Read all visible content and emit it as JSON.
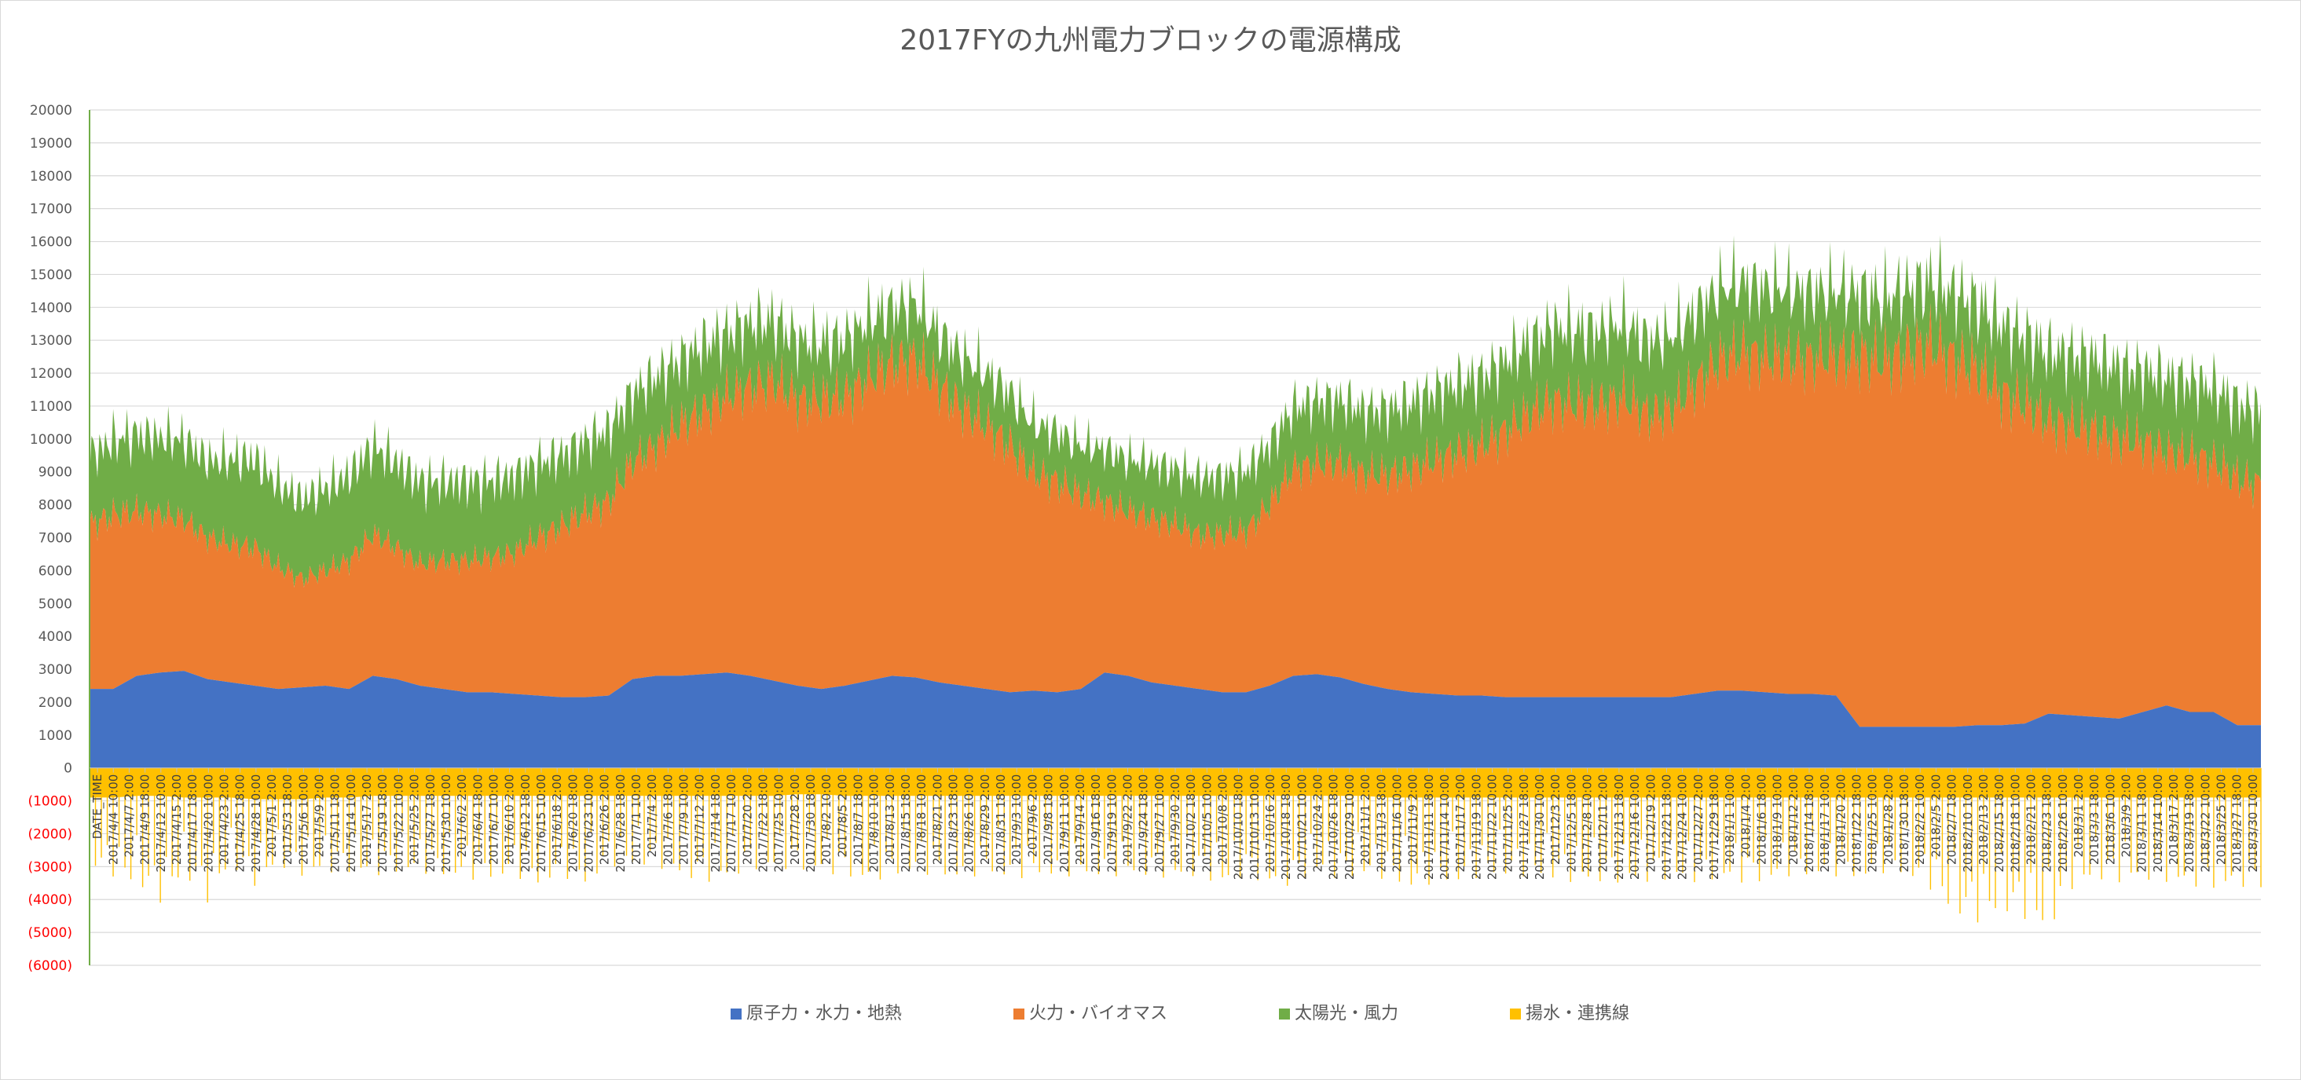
{
  "chart_data": {
    "type": "area",
    "title": "2017FYの九州電力ブロックの電源構成",
    "xlabel": "DATE_TIME",
    "ylabel": "",
    "ylim": [
      -6000,
      20000
    ],
    "y_ticks": [
      -6000,
      -5000,
      -4000,
      -3000,
      -2000,
      -1000,
      0,
      1000,
      2000,
      3000,
      4000,
      5000,
      6000,
      7000,
      8000,
      9000,
      10000,
      11000,
      12000,
      13000,
      14000,
      15000,
      16000,
      17000,
      18000,
      19000,
      20000
    ],
    "y_tick_labels": [
      "(6000)",
      "(5000)",
      "(4000)",
      "(3000)",
      "(2000)",
      "(1000)",
      "0",
      "1000",
      "2000",
      "3000",
      "4000",
      "5000",
      "6000",
      "7000",
      "8000",
      "9000",
      "10000",
      "11000",
      "12000",
      "13000",
      "14000",
      "15000",
      "16000",
      "17000",
      "18000",
      "19000",
      "20000"
    ],
    "negative_tick_color": "#ff0000",
    "x_tick_labels": [
      "DATE_TIME",
      "2017/4/4 10:00",
      "2017/4/7 2:00",
      "2017/4/9 18:00",
      "2017/4/12 10:00",
      "2017/4/15 2:00",
      "2017/4/17 18:00",
      "2017/4/20 10:00",
      "2017/4/23 2:00",
      "2017/4/25 18:00",
      "2017/4/28 10:00",
      "2017/5/1 2:00",
      "2017/5/3 18:00",
      "2017/5/6 10:00",
      "2017/5/9 2:00",
      "2017/5/11 18:00",
      "2017/5/14 10:00",
      "2017/5/17 2:00",
      "2017/5/19 18:00",
      "2017/5/22 10:00",
      "2017/5/25 2:00",
      "2017/5/27 18:00",
      "2017/5/30 10:00",
      "2017/6/2 2:00",
      "2017/6/4 18:00",
      "2017/6/7 10:00",
      "2017/6/10 2:00",
      "2017/6/12 18:00",
      "2017/6/15 10:00",
      "2017/6/18 2:00",
      "2017/6/20 18:00",
      "2017/6/23 10:00",
      "2017/6/26 2:00",
      "2017/6/28 18:00",
      "2017/7/1 10:00",
      "2017/7/4 2:00",
      "2017/7/6 18:00",
      "2017/7/9 10:00",
      "2017/7/12 2:00",
      "2017/7/14 18:00",
      "2017/7/17 10:00",
      "2017/7/20 2:00",
      "2017/7/22 18:00",
      "2017/7/25 10:00",
      "2017/7/28 2:00",
      "2017/7/30 18:00",
      "2017/8/2 10:00",
      "2017/8/5 2:00",
      "2017/8/7 18:00",
      "2017/8/10 10:00",
      "2017/8/13 2:00",
      "2017/8/15 18:00",
      "2017/8/18 10:00",
      "2017/8/21 2:00",
      "2017/8/23 18:00",
      "2017/8/26 10:00",
      "2017/8/29 2:00",
      "2017/8/31 18:00",
      "2017/9/3 10:00",
      "2017/9/6 2:00",
      "2017/9/8 18:00",
      "2017/9/11 10:00",
      "2017/9/14 2:00",
      "2017/9/16 18:00",
      "2017/9/19 10:00",
      "2017/9/22 2:00",
      "2017/9/24 18:00",
      "2017/9/27 10:00",
      "2017/9/30 2:00",
      "2017/10/2 18:00",
      "2017/10/5 10:00",
      "2017/10/8 2:00",
      "2017/10/10 18:00",
      "2017/10/13 10:00",
      "2017/10/16 2:00",
      "2017/10/18 18:00",
      "2017/10/21 10:00",
      "2017/10/24 2:00",
      "2017/10/26 18:00",
      "2017/10/29 10:00",
      "2017/11/1 2:00",
      "2017/11/3 18:00",
      "2017/11/6 10:00",
      "2017/11/9 2:00",
      "2017/11/11 18:00",
      "2017/11/14 10:00",
      "2017/11/17 2:00",
      "2017/11/19 18:00",
      "2017/11/22 10:00",
      "2017/11/25 2:00",
      "2017/11/27 18:00",
      "2017/11/30 10:00",
      "2017/12/3 2:00",
      "2017/12/5 18:00",
      "2017/12/8 10:00",
      "2017/12/11 2:00",
      "2017/12/13 18:00",
      "2017/12/16 10:00",
      "2017/12/19 2:00",
      "2017/12/21 18:00",
      "2017/12/24 10:00",
      "2017/12/27 2:00",
      "2017/12/29 18:00",
      "2018/1/1 10:00",
      "2018/1/4 2:00",
      "2018/1/6 18:00",
      "2018/1/9 10:00",
      "2018/1/12 2:00",
      "2018/1/14 18:00",
      "2018/1/17 10:00",
      "2018/1/20 2:00",
      "2018/1/22 18:00",
      "2018/1/25 10:00",
      "2018/1/28 2:00",
      "2018/1/30 18:00",
      "2018/2/2 10:00",
      "2018/2/5 2:00",
      "2018/2/7 18:00",
      "2018/2/10 10:00",
      "2018/2/13 2:00",
      "2018/2/15 18:00",
      "2018/2/18 10:00",
      "2018/2/21 2:00",
      "2018/2/23 18:00",
      "2018/2/26 10:00",
      "2018/3/1 2:00",
      "2018/3/3 18:00",
      "2018/3/6 10:00",
      "2018/3/9 2:00",
      "2018/3/11 18:00",
      "2018/3/14 10:00",
      "2018/3/17 2:00",
      "2018/3/19 18:00",
      "2018/3/22 10:00",
      "2018/3/25 2:00",
      "2018/3/27 18:00",
      "2018/3/30 10:00"
    ],
    "x_range": [
      "2017/4/1 0:00",
      "2018/3/31 23:00"
    ],
    "stacked": true,
    "grid": true,
    "legend_position": "bottom",
    "series": [
      {
        "name": "原子力・水力・地熱",
        "color": "#4472c4",
        "sample_every_days": 5,
        "values": [
          2400,
          2400,
          2800,
          2900,
          2950,
          2700,
          2600,
          2500,
          2400,
          2450,
          2500,
          2400,
          2800,
          2700,
          2500,
          2400,
          2300,
          2300,
          2250,
          2200,
          2150,
          2150,
          2200,
          2700,
          2800,
          2800,
          2850,
          2900,
          2800,
          2650,
          2500,
          2400,
          2500,
          2650,
          2800,
          2750,
          2600,
          2500,
          2400,
          2300,
          2350,
          2300,
          2400,
          2900,
          2800,
          2600,
          2500,
          2400,
          2300,
          2300,
          2500,
          2800,
          2850,
          2750,
          2550,
          2400,
          2300,
          2250,
          2200,
          2200,
          2150,
          2150,
          2150,
          2150,
          2150,
          2150,
          2150,
          2150,
          2250,
          2350,
          2350,
          2300,
          2250,
          2250,
          2200,
          1250,
          1250,
          1250,
          1250,
          1250,
          1300,
          1300,
          1350,
          1650,
          1600,
          1550,
          1500,
          1700,
          1900,
          1700,
          1700,
          1300,
          1300
        ]
      },
      {
        "name": "火力・バイオマス",
        "color": "#ed7d31",
        "sample_every_days": 5,
        "values": [
          5000,
          5300,
          5000,
          4800,
          4600,
          4300,
          4200,
          4200,
          3700,
          3300,
          3500,
          3900,
          4300,
          4000,
          3700,
          3900,
          4000,
          4100,
          4300,
          4800,
          5200,
          5600,
          5900,
          6600,
          7000,
          7600,
          8000,
          8400,
          8800,
          9100,
          8700,
          8800,
          8800,
          9200,
          9500,
          9700,
          9000,
          8400,
          8000,
          7500,
          6600,
          6400,
          5900,
          5200,
          5000,
          5000,
          4900,
          4700,
          4800,
          4900,
          5500,
          6300,
          6400,
          6500,
          6400,
          6500,
          6800,
          7100,
          7400,
          7600,
          8100,
          8600,
          9000,
          8900,
          8900,
          9100,
          8600,
          8700,
          9400,
          10000,
          10300,
          10200,
          10200,
          10200,
          10300,
          11300,
          11100,
          11400,
          11600,
          11200,
          10800,
          10100,
          9700,
          8900,
          8800,
          8700,
          8500,
          8200,
          7700,
          7800,
          7600,
          7500,
          7300
        ]
      },
      {
        "name": "太陽光・風力",
        "color": "#70ad47",
        "sample_every_days": 5,
        "values": [
          2500,
          2700,
          2800,
          2800,
          2900,
          2800,
          3100,
          3200,
          3000,
          2900,
          3000,
          3100,
          3200,
          3100,
          3000,
          2900,
          2900,
          2800,
          2800,
          2700,
          2600,
          2600,
          2600,
          2500,
          2500,
          2400,
          2400,
          2300,
          2300,
          2200,
          2200,
          2100,
          2100,
          2100,
          2000,
          2000,
          1900,
          1900,
          1900,
          1900,
          1800,
          1800,
          1800,
          1900,
          1900,
          2000,
          2000,
          2100,
          2100,
          2200,
          2200,
          2200,
          2300,
          2300,
          2300,
          2400,
          2400,
          2500,
          2500,
          2500,
          2600,
          2600,
          2700,
          2700,
          2700,
          2700,
          2700,
          2700,
          2600,
          2600,
          2500,
          2500,
          2500,
          2400,
          2400,
          2300,
          2300,
          2300,
          2300,
          2400,
          2400,
          2500,
          2500,
          2500,
          2600,
          2600,
          2600,
          2600,
          2700,
          2700,
          2700,
          2700,
          2700
        ]
      },
      {
        "name": "揚水・連携線",
        "color": "#ffc000",
        "sample_every_days": 5,
        "values": [
          -900,
          -900,
          -850,
          -850,
          -900,
          -900,
          -900,
          -950,
          -950,
          -950,
          -900,
          -900,
          -850,
          -850,
          -850,
          -850,
          -850,
          -850,
          -850,
          -850,
          -850,
          -850,
          -850,
          -850,
          -850,
          -850,
          -850,
          -850,
          -850,
          -850,
          -800,
          -800,
          -850,
          -850,
          -850,
          -850,
          -850,
          -850,
          -850,
          -850,
          -850,
          -850,
          -850,
          -850,
          -850,
          -850,
          -850,
          -850,
          -850,
          -850,
          -850,
          -850,
          -850,
          -850,
          -850,
          -900,
          -900,
          -900,
          -900,
          -900,
          -900,
          -900,
          -900,
          -900,
          -900,
          -900,
          -900,
          -900,
          -900,
          -900,
          -900,
          -900,
          -900,
          -900,
          -900,
          -900,
          -900,
          -900,
          -900,
          -900,
          -900,
          -900,
          -900,
          -900,
          -900,
          -900,
          -900,
          -900,
          -900,
          -900,
          -900,
          -900,
          -900
        ],
        "lower_envelope": [
          -3000,
          -3300,
          -3600,
          -4100,
          -3300,
          -4100,
          -3000,
          -3600,
          -3000,
          -3300,
          -3200,
          -3200,
          -3300,
          -3200,
          -3200,
          -3300,
          -3400,
          -3400,
          -3300,
          -3600,
          -3300,
          -3600,
          -3000,
          -3000,
          -3000,
          -3300,
          -3500,
          -3400,
          -3100,
          -3100,
          -3100,
          -3200,
          -3300,
          -3500,
          -3300,
          -3200,
          -3300,
          -3400,
          -3200,
          -3400,
          -3300,
          -3300,
          -3300,
          -3300,
          -3300,
          -3300,
          -3400,
          -3300,
          -3600,
          -3300,
          -3600,
          -3600,
          -3200,
          -3400,
          -3300,
          -3400,
          -3700,
          -3500,
          -3500,
          -3300,
          -3300,
          -3300,
          -3400,
          -3500,
          -3500,
          -3500,
          -3500,
          -3400,
          -3500,
          -3400,
          -3500,
          -3500,
          -3300,
          -3300,
          -3300,
          -3400,
          -3200,
          -3300,
          -3700,
          -4500,
          -4700,
          -4400,
          -4600,
          -5000,
          -3700,
          -3400,
          -3500,
          -3400,
          -3500,
          -3600,
          -3700,
          -3600,
          -3700
        ]
      }
    ]
  }
}
